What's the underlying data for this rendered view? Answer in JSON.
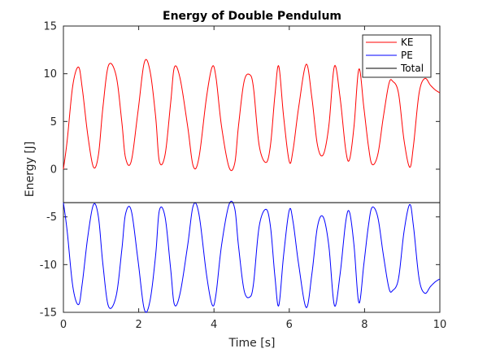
{
  "chart_data": {
    "type": "line",
    "title": "Energy of Double Pendulum",
    "xlabel": "Time [s]",
    "ylabel": "Energy [J]",
    "xlim": [
      0,
      10
    ],
    "ylim": [
      -15,
      15
    ],
    "xticks": [
      0,
      2,
      4,
      6,
      8,
      10
    ],
    "yticks": [
      -15,
      -10,
      -5,
      0,
      5,
      10,
      15
    ],
    "grid": false,
    "legend_position": "top-right",
    "series": [
      {
        "name": "KE",
        "color": "#ff0000",
        "x": [
          0,
          0.1,
          0.25,
          0.4,
          0.5,
          0.65,
          0.8,
          0.93,
          1.05,
          1.2,
          1.4,
          1.55,
          1.65,
          1.8,
          1.98,
          2.15,
          2.3,
          2.45,
          2.55,
          2.7,
          2.85,
          2.95,
          3.1,
          3.3,
          3.45,
          3.6,
          3.8,
          3.95,
          4.05,
          4.2,
          4.4,
          4.55,
          4.65,
          4.8,
          4.95,
          5.05,
          5.2,
          5.38,
          5.5,
          5.62,
          5.72,
          5.85,
          6.0,
          6.1,
          6.25,
          6.45,
          6.6,
          6.75,
          6.9,
          7.05,
          7.2,
          7.35,
          7.5,
          7.6,
          7.72,
          7.85,
          7.98,
          8.1,
          8.2,
          8.35,
          8.5,
          8.65,
          8.75,
          8.9,
          9.05,
          9.2,
          9.3,
          9.45,
          9.6,
          9.75,
          9.88,
          10.0
        ],
        "y": [
          0,
          3,
          8.8,
          10.7,
          8.5,
          3.5,
          0.2,
          1.5,
          6.5,
          10.9,
          9.8,
          5,
          1.2,
          0.8,
          6,
          11.2,
          10.3,
          5.5,
          0.8,
          1.5,
          7,
          10.7,
          9.5,
          4.5,
          0.3,
          1.2,
          7.5,
          10.7,
          9.7,
          4.5,
          0.2,
          0.6,
          4.5,
          9.2,
          9.9,
          8.5,
          2.5,
          0.7,
          2.5,
          7.8,
          10.8,
          5.5,
          0.8,
          2.0,
          6.5,
          11.0,
          7.5,
          2.5,
          1.5,
          4.5,
          10.8,
          7.5,
          2.0,
          1.0,
          4.5,
          10.5,
          6.5,
          2.5,
          0.5,
          1.5,
          5.5,
          9.0,
          9.2,
          8.0,
          3.0,
          0.2,
          2.5,
          8.0,
          9.5,
          8.8,
          8.3,
          8.0
        ]
      },
      {
        "name": "PE",
        "color": "#0000ff",
        "x": [
          0,
          0.1,
          0.25,
          0.4,
          0.5,
          0.65,
          0.8,
          0.93,
          1.05,
          1.2,
          1.4,
          1.55,
          1.65,
          1.8,
          1.98,
          2.15,
          2.3,
          2.45,
          2.55,
          2.7,
          2.85,
          2.95,
          3.1,
          3.3,
          3.45,
          3.6,
          3.8,
          3.95,
          4.05,
          4.2,
          4.4,
          4.55,
          4.65,
          4.8,
          4.95,
          5.05,
          5.2,
          5.38,
          5.5,
          5.62,
          5.72,
          5.85,
          6.0,
          6.1,
          6.25,
          6.45,
          6.6,
          6.75,
          6.9,
          7.05,
          7.2,
          7.35,
          7.5,
          7.6,
          7.72,
          7.85,
          7.98,
          8.1,
          8.2,
          8.35,
          8.5,
          8.65,
          8.75,
          8.9,
          9.05,
          9.2,
          9.3,
          9.45,
          9.6,
          9.75,
          9.88,
          10.0
        ],
        "y": [
          -3.5,
          -6.5,
          -12.3,
          -14.2,
          -12.0,
          -7.0,
          -3.7,
          -5.0,
          -10.0,
          -14.4,
          -13.3,
          -8.5,
          -4.7,
          -4.3,
          -9.5,
          -14.7,
          -13.8,
          -9.0,
          -4.3,
          -5.0,
          -10.5,
          -14.2,
          -13.0,
          -8.0,
          -3.8,
          -4.7,
          -11.0,
          -14.2,
          -13.2,
          -8.0,
          -3.7,
          -4.1,
          -8.0,
          -12.7,
          -13.4,
          -12.0,
          -6.0,
          -4.2,
          -6.0,
          -11.3,
          -14.3,
          -9.0,
          -4.3,
          -5.5,
          -10.0,
          -14.5,
          -11.0,
          -6.0,
          -5.0,
          -8.0,
          -14.3,
          -11.0,
          -5.5,
          -4.5,
          -8.0,
          -14.0,
          -10.0,
          -6.0,
          -4.0,
          -5.0,
          -9.0,
          -12.5,
          -12.7,
          -11.5,
          -6.5,
          -3.7,
          -6.0,
          -11.5,
          -13.0,
          -12.3,
          -11.8,
          -11.5
        ]
      },
      {
        "name": "Total",
        "color": "#000000",
        "x": [
          0,
          10
        ],
        "y": [
          -3.5,
          -3.5
        ]
      }
    ]
  }
}
